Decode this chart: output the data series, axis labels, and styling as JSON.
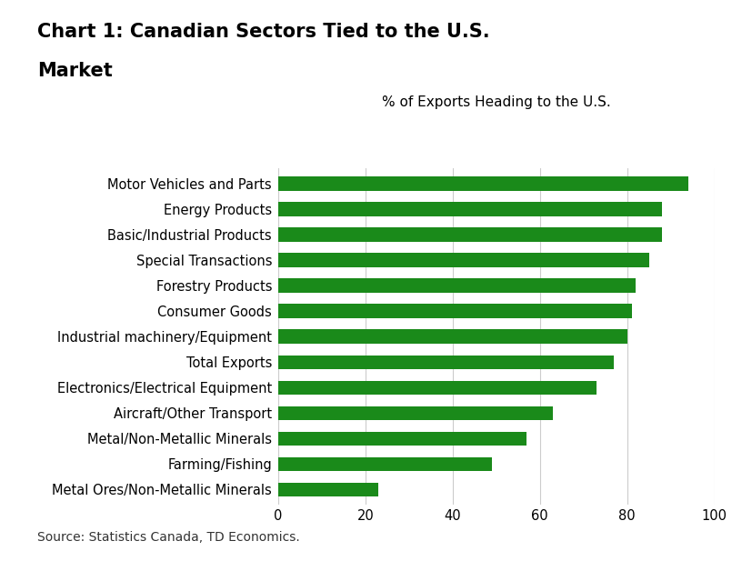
{
  "title_line1": "Chart 1: Canadian Sectors Tied to the U.S.",
  "title_line2": "Market",
  "subtitle": "% of Exports Heading to the U.S.",
  "source": "Source: Statistics Canada, TD Economics.",
  "categories": [
    "Metal Ores/Non-Metallic Minerals",
    "Farming/Fishing",
    "Metal/Non-Metallic Minerals",
    "Aircraft/Other Transport",
    "Electronics/Electrical Equipment",
    "Total Exports",
    "Industrial machinery/Equipment",
    "Consumer Goods",
    "Forestry Products",
    "Special Transactions",
    "Basic/Industrial Products",
    "Energy Products",
    "Motor Vehicles and Parts"
  ],
  "values": [
    23,
    49,
    57,
    63,
    73,
    77,
    80,
    81,
    82,
    85,
    88,
    88,
    94
  ],
  "bar_color": "#1a8a1a",
  "background_color": "#ffffff",
  "xlim": [
    0,
    100
  ],
  "xticks": [
    0,
    20,
    40,
    60,
    80,
    100
  ],
  "title_fontsize": 15,
  "subtitle_fontsize": 11,
  "label_fontsize": 10.5,
  "tick_fontsize": 10.5,
  "source_fontsize": 10
}
